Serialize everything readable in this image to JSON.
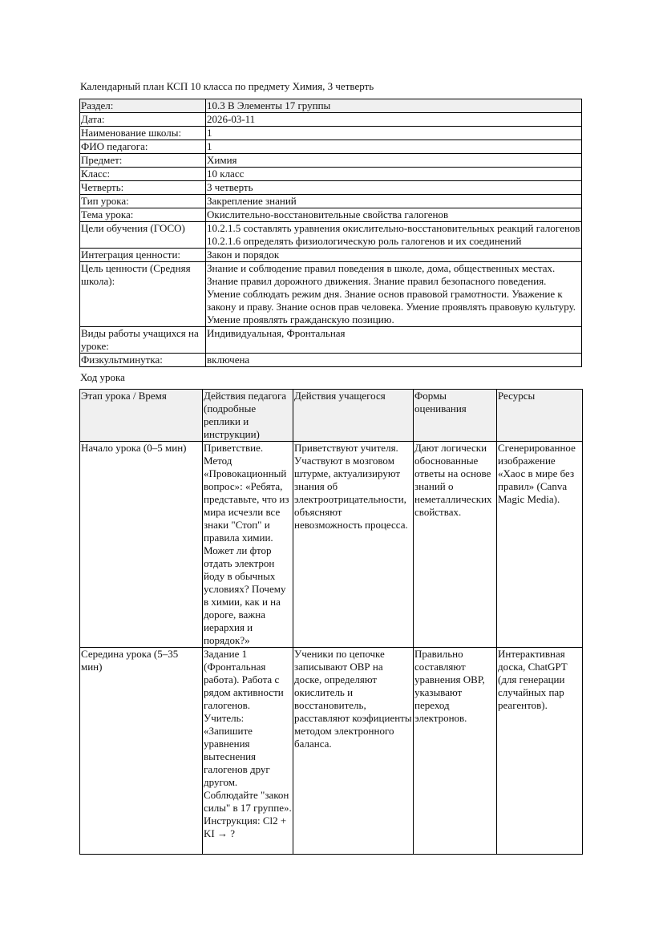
{
  "title": "Календарный план КСП 10 класса по предмету Химия, 3 четверть",
  "info_rows": [
    {
      "label": "Раздел:",
      "value": "10.3 В Элементы 17 группы"
    },
    {
      "label": "Дата:",
      "value": "2026-03-11"
    },
    {
      "label": "Наименование школы:",
      "value": "1"
    },
    {
      "label": "ФИО педагога:",
      "value": "1"
    },
    {
      "label": "Предмет:",
      "value": "Химия"
    },
    {
      "label": "Класс:",
      "value": "10 класс"
    },
    {
      "label": "Четверть:",
      "value": "3 четверть"
    },
    {
      "label": "Тип урока:",
      "value": "Закрепление знаний"
    },
    {
      "label": "Тема урока:",
      "value": "Окислительно-восстановительные свойства галогенов"
    },
    {
      "label": "Цели обучения (ГОСО)",
      "value": "10.2.1.5 составлять уравнения окислительно-восстановительных реакций галогенов 10.2.1.6 определять физиологическую роль галогенов и их соединений"
    },
    {
      "label": "Интеграция ценности:",
      "value": "Закон и порядок"
    },
    {
      "label": "Цель ценности (Средняя школа):",
      "value": "Знание и соблюдение правил поведения в школе, дома, общественных местах. Знание правил дорожного движения. Знание правил безопасного поведения. Умение соблюдать режим дня. Знание основ правовой грамотности. Уважение к закону и праву. Знание основ прав человека. Умение проявлять правовую культуру. Умение проявлять гражданскую позицию."
    },
    {
      "label": "Виды работы учащихся на уроке:",
      "value": "Индивидуальная, Фронтальная"
    },
    {
      "label": "Физкультминутка:",
      "value": "включена"
    }
  ],
  "lesson_flow_title": "Ход урока",
  "lesson_table": {
    "headers": [
      "Этап урока / Время",
      "Действия педагога (подробные реплики и инструкции)",
      "Действия учащегося",
      "Формы оценивания",
      "Ресурсы"
    ],
    "rows": [
      [
        "Начало урока (0–5 мин)",
        "Приветствие. Метод «Провокационный вопрос»: «Ребята, представьте, что из мира исчезли все знаки \"Стоп\" и правила химии. Может ли фтор отдать электрон йоду в обычных условиях? Почему в химии, как и на дороге, важна иерархия и порядок?»",
        "Приветствуют учителя. Участвуют в мозговом штурме, актуализируют знания об электроотрицательности, объясняют невозможность процесса.",
        "Дают логически обоснованные ответы на основе знаний о неметаллических свойствах.",
        "Сгенерированное изображение «Хаос в мире без правил» (Canva Magic Media)."
      ],
      [
        "Середина урока (5–35 мин)",
        "Задание 1 (Фронтальная работа). Работа с рядом активности галогенов. Учитель: «Запишите уравнения вытеснения галогенов друг другом. Соблюдайте \"закон силы\" в 17 группе». Инструкция: Cl2 + KI → ?",
        "Ученики по цепочке записывают ОВР на доске, определяют окислитель и восстановитель, расставляют коэфициенты методом электронного баланса.",
        "Правильно составляют уравнения ОВР, указывают переход электронов.",
        "Интерактивная доска, ChatGPT (для генерации случайных пар реагентов)."
      ]
    ]
  }
}
